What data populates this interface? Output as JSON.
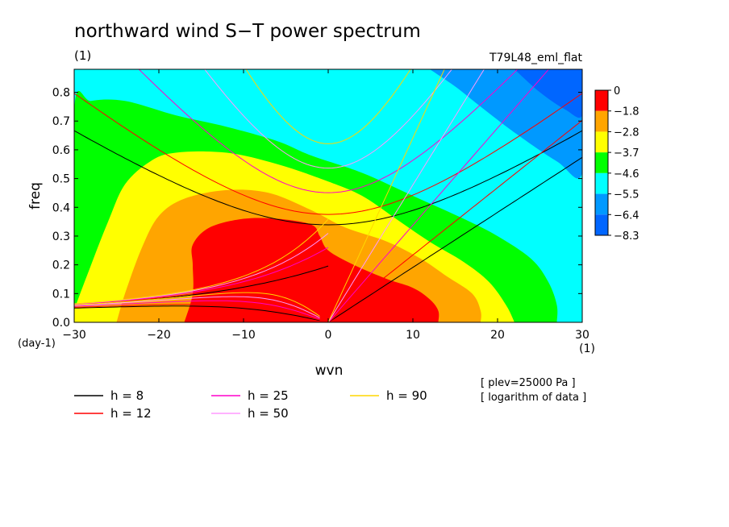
{
  "chart_data": {
    "type": "heatmap",
    "title": "northward wind S−T power spectrum",
    "subtitle_left": "(1)",
    "subtitle_right": "T79L48_eml_flat",
    "xlabel": "wvn",
    "ylabel": "freq",
    "x_unit": "(1)",
    "y_unit": "(day-1)",
    "xlim": [
      -30,
      30
    ],
    "ylim": [
      0,
      0.88
    ],
    "xticks": [
      -30,
      -20,
      -10,
      0,
      10,
      20,
      30
    ],
    "xtick_labels": [
      "−30",
      "−20",
      "−10",
      "0",
      "10",
      "20",
      "30"
    ],
    "yticks": [
      0,
      0.1,
      0.2,
      0.3,
      0.4,
      0.5,
      0.6,
      0.7,
      0.8
    ],
    "ytick_labels": [
      "0.0",
      "0.1",
      "0.2",
      "0.3",
      "0.4",
      "0.5",
      "0.6",
      "0.7",
      "0.8"
    ],
    "notes": [
      "[ plev=25000 Pa ]",
      "[ logarithm of data ]"
    ],
    "colorbar": {
      "labels": [
        "0",
        "−1.8",
        "−2.8",
        "−3.7",
        "−4.6",
        "−5.5",
        "−6.4",
        "−8.3"
      ],
      "colors": [
        "#ff0000",
        "#ffa500",
        "#ffff00",
        "#00ff00",
        "#00ffff",
        "#0099ff",
        "#0066ff"
      ]
    },
    "contour_fill": {
      "background_color": "#00ffff",
      "regions": [
        {
          "level": "-6.4 to -5.5",
          "color": "#0099ff",
          "boundary": [
            [
              12,
              0.88
            ],
            [
              15,
              0.82
            ],
            [
              18,
              0.75
            ],
            [
              22,
              0.66
            ],
            [
              27,
              0.56
            ],
            [
              30,
              0.52
            ],
            [
              30,
              0.88
            ]
          ]
        },
        {
          "level": "-8.3 to -6.4",
          "color": "#0066ff",
          "boundary": [
            [
              22,
              0.88
            ],
            [
              25,
              0.8
            ],
            [
              28,
              0.74
            ],
            [
              30,
              0.72
            ],
            [
              30,
              0.88
            ]
          ]
        },
        {
          "level": "-5.5 to -4.6",
          "color": "#00ff00",
          "boundary": [
            [
              -30,
              0.0
            ],
            [
              -30,
              0.74
            ],
            [
              -28,
              0.77
            ],
            [
              -24,
              0.77
            ],
            [
              -18,
              0.72
            ],
            [
              -12,
              0.68
            ],
            [
              -6,
              0.63
            ],
            [
              -2,
              0.58
            ],
            [
              4,
              0.52
            ],
            [
              10,
              0.44
            ],
            [
              16,
              0.36
            ],
            [
              20,
              0.3
            ],
            [
              24,
              0.22
            ],
            [
              26,
              0.14
            ],
            [
              27,
              0.06
            ],
            [
              27,
              0.0
            ]
          ]
        },
        {
          "level": "-4.6 to -3.7",
          "color": "#ffff00",
          "boundary": [
            [
              -30,
              0.0
            ],
            [
              -30,
              0.04
            ],
            [
              -28,
              0.2
            ],
            [
              -26,
              0.35
            ],
            [
              -24,
              0.48
            ],
            [
              -21,
              0.56
            ],
            [
              -18,
              0.59
            ],
            [
              -12,
              0.59
            ],
            [
              -6,
              0.55
            ],
            [
              0,
              0.49
            ],
            [
              4,
              0.44
            ],
            [
              8,
              0.36
            ],
            [
              12,
              0.28
            ],
            [
              16,
              0.21
            ],
            [
              19,
              0.14
            ],
            [
              21,
              0.06
            ],
            [
              22,
              0.0
            ]
          ]
        },
        {
          "level": "-3.7 to -2.8",
          "color": "#ffa500",
          "boundary": [
            [
              -25,
              0.0
            ],
            [
              -24,
              0.1
            ],
            [
              -22,
              0.26
            ],
            [
              -20,
              0.37
            ],
            [
              -17,
              0.43
            ],
            [
              -12,
              0.46
            ],
            [
              -7,
              0.45
            ],
            [
              -2,
              0.39
            ],
            [
              2,
              0.33
            ],
            [
              7,
              0.28
            ],
            [
              11,
              0.22
            ],
            [
              14,
              0.16
            ],
            [
              17,
              0.1
            ],
            [
              18,
              0.04
            ],
            [
              18,
              0.0
            ]
          ]
        },
        {
          "level": "-2.8 to 0",
          "color": "#ff0000",
          "boundary": [
            [
              -17,
              0.0
            ],
            [
              -16,
              0.1
            ],
            [
              -16,
              0.2
            ],
            [
              -16,
              0.27
            ],
            [
              -14,
              0.33
            ],
            [
              -10,
              0.36
            ],
            [
              -6,
              0.36
            ],
            [
              -2,
              0.34
            ],
            [
              -1,
              0.3
            ],
            [
              0,
              0.25
            ],
            [
              3,
              0.2
            ],
            [
              7,
              0.15
            ],
            [
              10,
              0.12
            ],
            [
              12,
              0.08
            ],
            [
              13,
              0.04
            ],
            [
              13,
              0.0
            ]
          ]
        }
      ]
    },
    "series": [
      {
        "name": "h =  8",
        "color": "#000000",
        "equivalent_depth_m": 8
      },
      {
        "name": "h = 12",
        "color": "#ff0000",
        "equivalent_depth_m": 12
      },
      {
        "name": "h = 25",
        "color": "#ff00cc",
        "equivalent_depth_m": 25
      },
      {
        "name": "h = 50",
        "color": "#ff99ff",
        "equivalent_depth_m": 50
      },
      {
        "name": "h = 90",
        "color": "#ffd700",
        "equivalent_depth_m": 90
      }
    ]
  }
}
